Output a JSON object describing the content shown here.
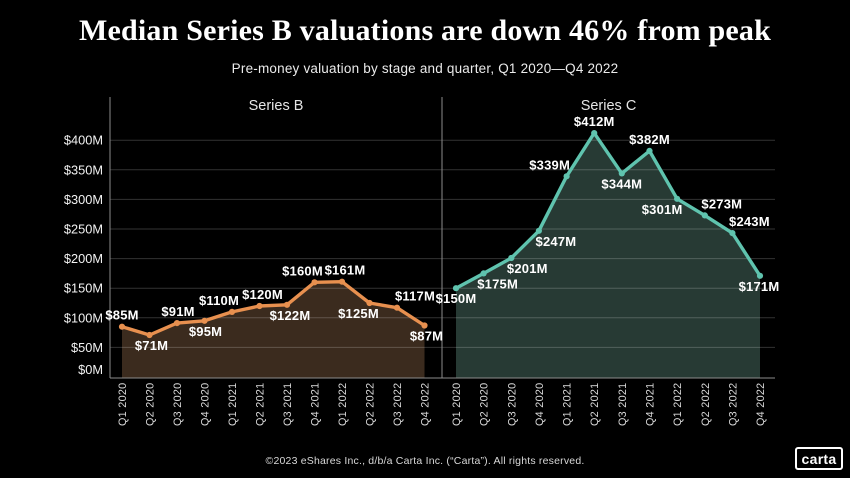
{
  "title": "Median Series B valuations are down 46% from peak",
  "subtitle": "Pre-money valuation by stage and quarter, Q1 2020—Q4 2022",
  "footer": {
    "copyright": "©2023 eShares Inc., d/b/a Carta Inc. (“Carta”). All rights reserved.",
    "logo_text": "carta"
  },
  "colors": {
    "background": "#000000",
    "title": "#FFFFFF",
    "subtitle": "#EBEBEB",
    "axis_line": "#8C8C8C",
    "gridline": "rgba(255,255,255,0.20)",
    "y_tick_label": "#F2F2F2",
    "x_tick_label": "#D9D9D9",
    "panel_title": "#E6E6E6",
    "data_label": "#FFFFFF",
    "footer_text": "#D9D9D9"
  },
  "chart_data": {
    "type": "area",
    "title": "Median Series B valuations are down 46% from peak",
    "subtitle": "Pre-money valuation by stage and quarter, Q1 2020—Q4 2022",
    "categories": [
      "Q1 2020",
      "Q2 2020",
      "Q3 2020",
      "Q4 2020",
      "Q1 2021",
      "Q2 2021",
      "Q3 2021",
      "Q4 2021",
      "Q1 2022",
      "Q2 2022",
      "Q3 2022",
      "Q4 2022"
    ],
    "y_ticks": [
      0,
      50,
      100,
      150,
      200,
      250,
      300,
      350,
      400
    ],
    "y_tick_labels": [
      "$0M",
      "$50M",
      "$100M",
      "$150M",
      "$200M",
      "$250M",
      "$300M",
      "$350M",
      "$400M"
    ],
    "ylim": [
      0,
      475
    ],
    "grid": true,
    "units": "millions USD, pre-money valuation",
    "panels": [
      {
        "title": "Series B",
        "line_color": "#E8904F",
        "fill_color": "#3B2B1E",
        "values": [
          85,
          71,
          91,
          95,
          110,
          120,
          122,
          160,
          161,
          125,
          117,
          87
        ],
        "labels": [
          "$85M",
          "$71M",
          "$91M",
          "$95M",
          "$110M",
          "$120M",
          "$122M",
          "$160M",
          "$161M",
          "$125M",
          "$117M",
          "$87M"
        ],
        "label_pos": [
          "above",
          "below",
          "above",
          "below",
          "above",
          "above",
          "below",
          "above",
          "above",
          "below",
          "above",
          "below"
        ],
        "label_dx": [
          0,
          2,
          1,
          1,
          -13,
          3,
          3,
          -12,
          3,
          -11,
          18,
          2
        ]
      },
      {
        "title": "Series C",
        "line_color": "#5FC3AE",
        "fill_color": "#273A34",
        "values": [
          150,
          175,
          201,
          247,
          339,
          412,
          344,
          382,
          301,
          273,
          243,
          171
        ],
        "labels": [
          "$150M",
          "$175M",
          "$201M",
          "$247M",
          "$339M",
          "$412M",
          "$344M",
          "$382M",
          "$301M",
          "$273M",
          "$243M",
          "$171M"
        ],
        "label_pos": [
          "below",
          "below",
          "below",
          "below",
          "above",
          "above",
          "below",
          "above",
          "below",
          "above",
          "above",
          "below"
        ],
        "label_dx": [
          0,
          14,
          16,
          17,
          -17,
          0,
          0,
          0,
          -15,
          17,
          17,
          -1
        ]
      }
    ]
  }
}
